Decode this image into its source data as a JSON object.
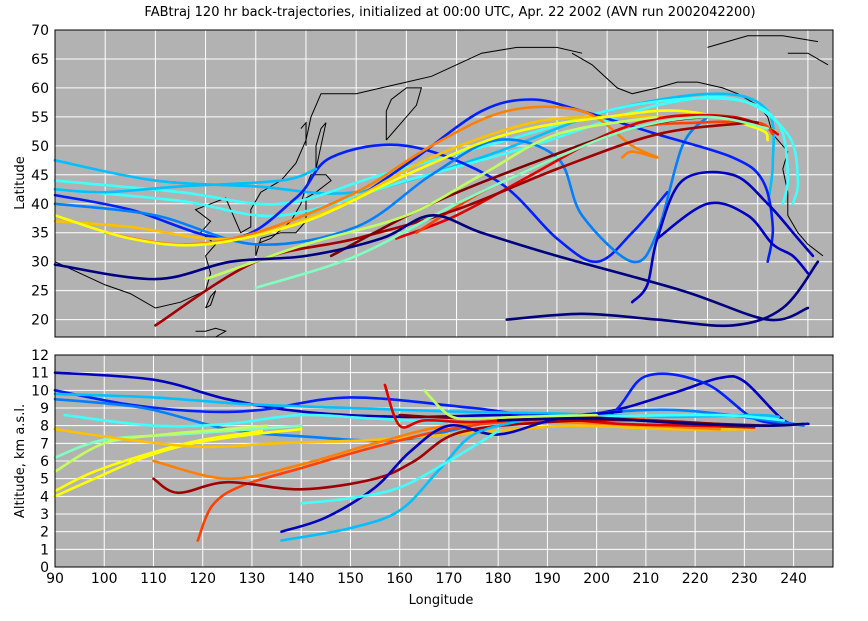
{
  "title": "FABtraj 120 hr back-trajectories, initialized at 00:00 UTC, Apr. 22 2002 (AVN run 2002042200)",
  "colors": {
    "plot_bg": "#b2b2b2",
    "grid": "#ffffff",
    "coast": "#000000",
    "trajectory_palette": [
      "#000080",
      "#0000c0",
      "#0020ff",
      "#0080ff",
      "#00c0ff",
      "#40ffff",
      "#80ffc0",
      "#c0ff60",
      "#ffff00",
      "#ffc000",
      "#ff8000",
      "#ff4000",
      "#e00000",
      "#a00000",
      "#800000"
    ]
  },
  "chart_data": [
    {
      "type": "line",
      "ylabel": "Latitude",
      "xlim": [
        90,
        245
      ],
      "ylim": [
        17,
        70
      ],
      "yticks": [
        20,
        25,
        30,
        35,
        40,
        45,
        50,
        55,
        60,
        65,
        70
      ],
      "xgrid": [
        100,
        110,
        120,
        130,
        140,
        150,
        160,
        170,
        180,
        190,
        200,
        210,
        220,
        230,
        240
      ],
      "grid": true,
      "series": [
        {
          "color": "#00c0ff",
          "x": [
            90,
            110,
            130,
            150,
            175,
            200,
            222,
            232,
            233,
            232
          ],
          "y": [
            47.5,
            44,
            43,
            42,
            48,
            56,
            59,
            56,
            47,
            40
          ]
        },
        {
          "color": "#40ffff",
          "x": [
            90,
            115,
            135,
            155,
            180,
            205,
            225,
            234,
            236,
            235
          ],
          "y": [
            44,
            42,
            40,
            45,
            51,
            57,
            58,
            54,
            45,
            40
          ]
        },
        {
          "color": "#40ffff",
          "x": [
            90,
            115,
            135,
            160,
            185,
            210,
            226,
            236,
            238,
            237
          ],
          "y": [
            42.5,
            40.5,
            38,
            44,
            50,
            57,
            58,
            52,
            44,
            40
          ]
        },
        {
          "color": "#0020ff",
          "x": [
            90,
            105,
            125,
            138,
            145,
            160,
            178,
            190,
            198,
            205,
            212
          ],
          "y": [
            41.5,
            39,
            34,
            41,
            48,
            50,
            44,
            34,
            30,
            35,
            42
          ]
        },
        {
          "color": "#0080ff",
          "x": [
            90,
            110,
            130,
            150,
            165,
            178,
            190,
            195,
            205,
            210,
            215,
            220
          ],
          "y": [
            40,
            38,
            33,
            36,
            45,
            51,
            48,
            38,
            30,
            35,
            50,
            55
          ]
        },
        {
          "color": "#0020ff",
          "x": [
            152,
            162,
            175,
            185,
            195,
            210,
            225,
            231,
            233,
            232
          ],
          "y": [
            42,
            48,
            56,
            58,
            56,
            52,
            48,
            44,
            36,
            30
          ]
        },
        {
          "color": "#ffc000",
          "x": [
            90,
            105,
            125,
            145,
            165,
            185,
            200,
            212,
            222,
            232,
            234
          ],
          "y": [
            37,
            36,
            34,
            39,
            48,
            54,
            55,
            55,
            55,
            53,
            52
          ]
        },
        {
          "color": "#ff8000",
          "x": [
            100,
            115,
            130,
            150,
            165,
            180,
            195,
            205,
            210,
            205,
            203
          ],
          "y": [
            35,
            33,
            35,
            42,
            50,
            56,
            56,
            50,
            48,
            49,
            48
          ]
        },
        {
          "color": "#ffff00",
          "x": [
            90,
            105,
            120,
            140,
            160,
            180,
            200,
            215,
            230,
            232
          ],
          "y": [
            38,
            34,
            33,
            37,
            45,
            52,
            55,
            56,
            53,
            51
          ]
        },
        {
          "color": "#e00000",
          "x": [
            158,
            170,
            185,
            200,
            212,
            225,
            232,
            234
          ],
          "y": [
            34,
            38,
            45,
            52,
            55,
            55,
            53,
            52
          ]
        },
        {
          "color": "#ff4000",
          "x": [
            162,
            175,
            190,
            205,
            218,
            230,
            233
          ],
          "y": [
            35,
            42,
            48,
            53,
            54,
            54,
            52
          ]
        },
        {
          "color": "#a00000",
          "x": [
            110,
            130,
            150,
            170,
            190,
            210,
            228
          ],
          "y": [
            19,
            30,
            34,
            39,
            46,
            52,
            54
          ]
        },
        {
          "color": "#800000",
          "x": [
            145,
            165,
            185,
            205,
            220,
            230
          ],
          "y": [
            31,
            40,
            47,
            53,
            55,
            54
          ]
        },
        {
          "color": "#80ffc0",
          "x": [
            130,
            150,
            170,
            190,
            205,
            220,
            232
          ],
          "y": [
            25.5,
            31,
            40,
            48,
            53,
            55,
            53
          ]
        },
        {
          "color": "#c0ff60",
          "x": [
            120,
            140,
            160,
            175,
            190,
            210
          ],
          "y": [
            27,
            33,
            38,
            45,
            52,
            55
          ]
        },
        {
          "color": "#000080",
          "x": [
            90,
            110,
            125,
            140,
            155,
            165,
            175,
            190,
            215,
            232,
            240
          ],
          "y": [
            29.5,
            27,
            30,
            31,
            34,
            38,
            35,
            31,
            25,
            20,
            22
          ]
        },
        {
          "color": "#000080",
          "x": [
            180,
            195,
            210,
            225,
            235,
            242
          ],
          "y": [
            20,
            21,
            20,
            19,
            22,
            30
          ]
        },
        {
          "color": "#0000c0",
          "x": [
            205,
            208,
            210,
            215,
            225,
            232,
            238,
            241
          ],
          "y": [
            23,
            26,
            34,
            44,
            45,
            40,
            34,
            31
          ]
        },
        {
          "color": "#0000c0",
          "x": [
            210,
            220,
            228,
            233,
            237,
            240
          ],
          "y": [
            34,
            40,
            38,
            33,
            31,
            28
          ]
        },
        {
          "color": "#00c0ff",
          "x": [
            90,
            100,
            115,
            135,
            142
          ],
          "y": [
            42.5,
            42,
            43,
            44,
            46
          ]
        }
      ]
    },
    {
      "type": "line",
      "xlabel": "Longitude",
      "ylabel": "Altitude, km a.s.l.",
      "xlim": [
        90,
        248
      ],
      "ylim": [
        0,
        12
      ],
      "xticks": [
        90,
        100,
        110,
        120,
        130,
        140,
        150,
        160,
        170,
        180,
        190,
        200,
        210,
        220,
        230,
        240
      ],
      "yticks": [
        0,
        1,
        2,
        3,
        4,
        5,
        6,
        7,
        8,
        9,
        10,
        11,
        12
      ],
      "grid": true,
      "series": [
        {
          "color": "#0000c0",
          "x": [
            90,
            110,
            125,
            140,
            160,
            180,
            200,
            215,
            225,
            230,
            238,
            243
          ],
          "y": [
            11,
            10.6,
            9.5,
            8.8,
            8.5,
            8.6,
            8.7,
            9.8,
            10.7,
            10.5,
            8.3,
            8.1
          ]
        },
        {
          "color": "#0020ff",
          "x": [
            90,
            105,
            120,
            132,
            150,
            175,
            200,
            210,
            222,
            232,
            240
          ],
          "y": [
            10,
            9.2,
            8.8,
            8.9,
            9.6,
            9.0,
            8.3,
            10.8,
            10.4,
            8.4,
            8.1
          ]
        },
        {
          "color": "#0080ff",
          "x": [
            90,
            108,
            125,
            140,
            160,
            180,
            195,
            215,
            235,
            242
          ],
          "y": [
            9.5,
            9.0,
            7.8,
            7.4,
            7.2,
            8.3,
            8.6,
            8.9,
            8.3,
            8.0
          ]
        },
        {
          "color": "#00c0ff",
          "x": [
            90,
            110,
            130,
            150,
            170,
            190,
            215,
            232,
            237
          ],
          "y": [
            9.8,
            9.6,
            9.2,
            9.0,
            8.8,
            8.7,
            8.5,
            8.6,
            8.5
          ]
        },
        {
          "color": "#40ffff",
          "x": [
            92,
            110,
            125,
            140,
            155,
            175,
            200,
            225,
            238
          ],
          "y": [
            8.6,
            8.0,
            8.1,
            8.6,
            8.4,
            8.2,
            8.5,
            8.6,
            8.3
          ]
        },
        {
          "color": "#80ffc0",
          "x": [
            90,
            100,
            115,
            125,
            140
          ],
          "y": [
            6.2,
            7.2,
            7.5,
            7.7,
            8.0
          ]
        },
        {
          "color": "#c0ff60",
          "x": [
            90,
            100,
            112,
            125,
            133
          ],
          "y": [
            5.4,
            7.0,
            7.5,
            7.8,
            8.0
          ]
        },
        {
          "color": "#ffff00",
          "x": [
            90,
            98,
            108,
            118,
            130,
            140
          ],
          "y": [
            4.0,
            5.0,
            6.2,
            7.0,
            7.5,
            7.8
          ]
        },
        {
          "color": "#ffff00",
          "x": [
            90,
            98,
            110,
            120,
            132
          ],
          "y": [
            4.3,
            5.4,
            6.5,
            7.2,
            7.7
          ]
        },
        {
          "color": "#ffc000",
          "x": [
            90,
            105,
            120,
            135,
            155,
            175,
            195,
            215,
            232
          ],
          "y": [
            7.8,
            7.2,
            6.8,
            7.0,
            7.2,
            7.6,
            8.0,
            7.8,
            7.8
          ]
        },
        {
          "color": "#ff8000",
          "x": [
            110,
            125,
            140,
            155,
            170,
            190,
            210,
            225
          ],
          "y": [
            6.0,
            5.0,
            5.8,
            7.0,
            8.0,
            8.2,
            8.0,
            7.8
          ]
        },
        {
          "color": "#ff4000",
          "x": [
            119,
            122,
            128,
            140,
            155,
            170,
            185,
            205,
            225
          ],
          "y": [
            1.5,
            3.5,
            4.6,
            5.6,
            6.8,
            7.8,
            8.3,
            8.4,
            8.0
          ]
        },
        {
          "color": "#e00000",
          "x": [
            157,
            160,
            165,
            175,
            190,
            205,
            220,
            232
          ],
          "y": [
            10.3,
            8.0,
            8.3,
            8.2,
            8.4,
            8.1,
            8.0,
            7.9
          ]
        },
        {
          "color": "#a00000",
          "x": [
            110,
            115,
            125,
            140,
            155,
            163,
            172,
            190,
            210,
            230
          ],
          "y": [
            5.0,
            4.2,
            4.8,
            4.4,
            5.0,
            6.0,
            7.6,
            8.2,
            8.3,
            8.0
          ]
        },
        {
          "color": "#800000",
          "x": [
            160,
            175,
            195,
            215,
            235
          ],
          "y": [
            8.6,
            8.4,
            8.5,
            8.2,
            8.0
          ]
        },
        {
          "color": "#0000c0",
          "x": [
            136,
            145,
            155,
            162,
            170,
            180,
            192,
            205
          ],
          "y": [
            2.0,
            2.8,
            4.5,
            6.5,
            8.0,
            7.5,
            8.4,
            8.8
          ]
        },
        {
          "color": "#00c0ff",
          "x": [
            136,
            150,
            160,
            168,
            175,
            185
          ],
          "y": [
            1.5,
            2.2,
            3.2,
            5.5,
            7.5,
            8.3
          ]
        },
        {
          "color": "#40ffff",
          "x": [
            140,
            150,
            160,
            170,
            180
          ],
          "y": [
            3.6,
            3.9,
            4.5,
            6.0,
            7.7
          ]
        },
        {
          "color": "#c0ff60",
          "x": [
            165,
            170,
            175,
            185,
            200
          ],
          "y": [
            10.0,
            8.6,
            8.4,
            8.5,
            8.6
          ]
        },
        {
          "color": "#000080",
          "x": [
            180,
            200,
            220,
            235,
            242
          ],
          "y": [
            8.3,
            8.4,
            8.1,
            8.0,
            8.1
          ]
        }
      ]
    }
  ]
}
